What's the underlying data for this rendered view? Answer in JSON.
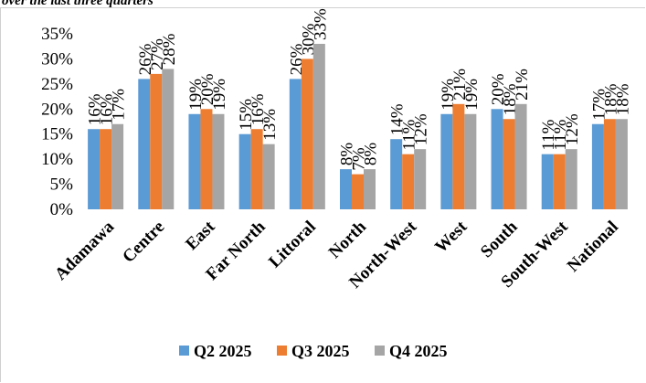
{
  "title": "over the last three quarters",
  "chart_data": {
    "type": "bar",
    "categories": [
      "Adamawa",
      "Centre",
      "East",
      "Far North",
      "Littoral",
      "North",
      "North-West",
      "West",
      "South",
      "South-West",
      "National"
    ],
    "series": [
      {
        "name": "Q2 2025",
        "color": "#5b9bd5",
        "values": [
          16,
          26,
          19,
          15,
          26,
          8,
          14,
          19,
          20,
          11,
          17
        ]
      },
      {
        "name": "Q3 2025",
        "color": "#ed7d31",
        "values": [
          16,
          27,
          20,
          16,
          30,
          7,
          11,
          21,
          18,
          11,
          18
        ]
      },
      {
        "name": "Q4 2025",
        "color": "#a5a5a5",
        "values": [
          17,
          28,
          19,
          13,
          33,
          8,
          12,
          19,
          21,
          12,
          18
        ]
      }
    ],
    "ylim": [
      0,
      35
    ],
    "yticks": [
      "0%",
      "5%",
      "10%",
      "15%",
      "20%",
      "25%",
      "30%",
      "35%"
    ],
    "data_label_suffix": "%",
    "legend_position": "bottom",
    "grid": false
  }
}
